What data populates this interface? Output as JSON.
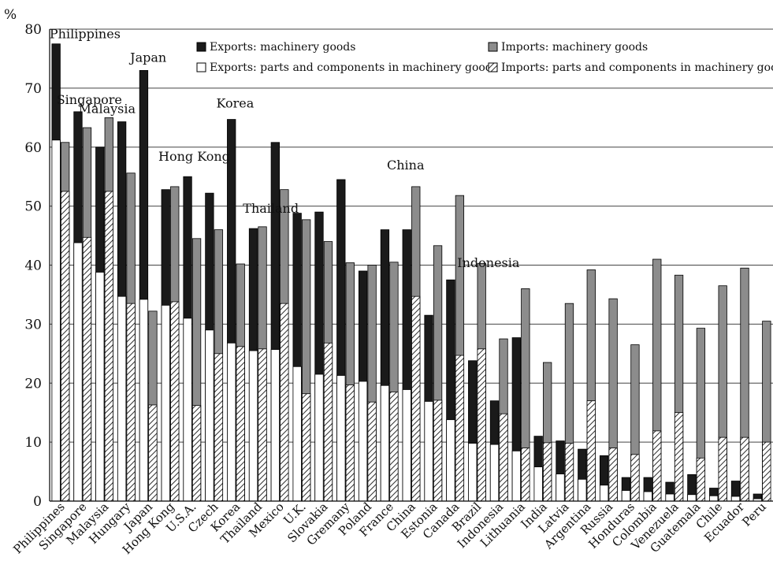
{
  "chart_data": {
    "type": "bar",
    "unit_label": "%",
    "ylim": [
      0,
      80
    ],
    "yticks": [
      0,
      10,
      20,
      30,
      40,
      50,
      60,
      70,
      80
    ],
    "grid": true,
    "legend_placement": "top-right",
    "legend": {
      "exports_machinery": "Exports: machinery goods",
      "exports_parts": "Exports: parts and components in machinery goods",
      "imports_machinery": "Imports: machinery goods",
      "imports_parts": "Imports: parts and components in machinery goods"
    },
    "colors": {
      "exports_machinery": "#1a1a1a",
      "imports_machinery": "#8c8c8c",
      "exports_parts": "#ffffff",
      "imports_parts_hatch": "#333333",
      "grid": "#444444"
    },
    "categories": [
      "Philippines",
      "Singapore",
      "Malaysia",
      "Hungary",
      "Japan",
      "Hong Kong",
      "U.S.A.",
      "Czech",
      "Korea",
      "Thailand",
      "Mexico",
      "U.K.",
      "Slovakia",
      "Gremany",
      "Poland",
      "France",
      "China",
      "Estonia",
      "Canada",
      "Brazil",
      "Indonesia",
      "Lithuania",
      "India",
      "Latvia",
      "Argentina",
      "Russia",
      "Honduras",
      "Colombia",
      "Venezuela",
      "Guatemala",
      "Chile",
      "Ecuador",
      "Peru"
    ],
    "exports_machinery": [
      77.5,
      66,
      60,
      64.3,
      73,
      52.8,
      55,
      52.2,
      64.7,
      46.2,
      60.8,
      48.8,
      49,
      54.5,
      39,
      46,
      46,
      31.5,
      37.5,
      23.8,
      17,
      27.7,
      11,
      10.2,
      8.8,
      7.7,
      4,
      4,
      3.2,
      4.5,
      2.2,
      3.4,
      1.2
    ],
    "exports_parts": [
      61.2,
      43.8,
      38.8,
      34.7,
      34.2,
      33.2,
      31,
      29,
      26.8,
      25.5,
      25.7,
      22.8,
      21.5,
      21.3,
      20.3,
      19.6,
      18.9,
      16.9,
      13.8,
      9.8,
      9.6,
      8.5,
      5.8,
      4.6,
      3.7,
      2.7,
      1.8,
      1.6,
      1.2,
      1.1,
      0.9,
      0.8,
      0.4
    ],
    "imports_machinery": [
      60.8,
      63.3,
      65,
      55.6,
      32.2,
      53.3,
      44.5,
      46,
      40.2,
      46.5,
      52.8,
      47.7,
      44,
      40.4,
      40,
      40.5,
      53.3,
      43.3,
      51.8,
      40.3,
      27.5,
      36,
      23.5,
      33.5,
      39.2,
      34.3,
      26.5,
      41,
      38.3,
      29.3,
      36.5,
      39.5,
      30.5
    ],
    "imports_parts": [
      52.5,
      44.7,
      52.5,
      33.5,
      16.3,
      33.8,
      16.2,
      25,
      26.2,
      25.8,
      33.5,
      18.2,
      26.8,
      19.7,
      16.8,
      18.5,
      34.7,
      17.1,
      24.7,
      25.8,
      14.8,
      9,
      9.9,
      9.8,
      17,
      9,
      7.9,
      11.9,
      15,
      7.3,
      10.8,
      10.8,
      10
    ]
  },
  "annotations": [
    {
      "text": "Philippines",
      "category": "Philippines"
    },
    {
      "text": "Singapore",
      "category": "Singapore"
    },
    {
      "text": "Malaysia",
      "category": "Malaysia"
    },
    {
      "text": "Japan",
      "category": "Japan"
    },
    {
      "text": "Hong Kong",
      "category": "Hong Kong"
    },
    {
      "text": "Korea",
      "category": "Korea"
    },
    {
      "text": "Thailand",
      "category": "Thailand"
    },
    {
      "text": "China",
      "category": "China"
    },
    {
      "text": "Indonesia",
      "category": "Indonesia"
    }
  ]
}
